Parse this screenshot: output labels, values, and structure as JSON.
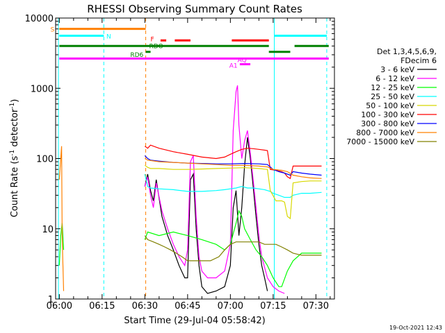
{
  "chart_data": {
    "type": "line",
    "title": "RHESSI Observing Summary Count Rates",
    "xlabel": "Start Time (29-Jul-04 05:58:42)",
    "ylabel": "Count Rate (s⁻¹ detector⁻¹)",
    "ylabel_parts": {
      "main": "Count Rate (s",
      "sup1": "-1",
      "mid": " detector",
      "sup2": "-1",
      "end": ")"
    },
    "xlim_minutes": [
      -1.3,
      96.5
    ],
    "x_ticks": [
      {
        "label": "06:00",
        "min": 0
      },
      {
        "label": "06:15",
        "min": 15
      },
      {
        "label": "06:30",
        "min": 30
      },
      {
        "label": "06:45",
        "min": 45
      },
      {
        "label": "07:00",
        "min": 60
      },
      {
        "label": "07:15",
        "min": 75
      },
      {
        "label": "07:30",
        "min": 90
      }
    ],
    "y_scale": "log",
    "ylim": [
      1,
      10000
    ],
    "y_ticks": [
      {
        "label": "1",
        "value": 1
      },
      {
        "label": "10",
        "value": 10
      },
      {
        "label": "100",
        "value": 100
      },
      {
        "label": "1000",
        "value": 1000
      },
      {
        "label": "10000",
        "value": 10000
      }
    ],
    "legend": {
      "position": "right",
      "header": [
        "Det 1,3,4,5,6,9,",
        "FDecim 6"
      ],
      "entries": [
        {
          "label": "3 - 6 keV",
          "color": "#000000"
        },
        {
          "label": "6 - 12 keV",
          "color": "#ff00ff"
        },
        {
          "label": "12 - 25 keV",
          "color": "#00ff00"
        },
        {
          "label": "25 - 50 keV",
          "color": "#00ffff"
        },
        {
          "label": "50 - 100 keV",
          "color": "#d8d800"
        },
        {
          "label": "100 - 300 keV",
          "color": "#ff0000"
        },
        {
          "label": "300 - 800 keV",
          "color": "#0000ff"
        },
        {
          "label": "800 - 7000 keV",
          "color": "#ff8000"
        },
        {
          "label": "7000 - 15000 keV",
          "color": "#808000"
        }
      ]
    },
    "series": [
      {
        "name": "3 - 6 keV",
        "color": "#000000",
        "x": [
          30,
          31,
          32,
          33,
          34,
          36,
          38,
          40,
          42,
          44,
          45,
          46,
          47,
          48,
          49,
          50,
          52,
          55,
          58,
          60,
          61,
          62,
          63,
          64,
          65,
          66,
          67,
          68,
          69,
          70,
          71,
          72,
          73
        ],
        "y": [
          40,
          60,
          35,
          25,
          50,
          15,
          8,
          5,
          3,
          2,
          2,
          50,
          60,
          10,
          3,
          1.5,
          1.2,
          1.3,
          1.5,
          3,
          20,
          35,
          8,
          20,
          80,
          200,
          100,
          40,
          15,
          6,
          3,
          2,
          1.3
        ]
      },
      {
        "name": "6 - 12 keV",
        "color": "#ff00ff",
        "x": [
          30,
          31,
          32,
          33,
          34,
          36,
          38,
          40,
          42,
          44,
          45,
          46,
          47,
          48,
          49,
          50,
          52,
          55,
          58,
          60,
          61,
          62,
          62.5,
          63,
          64,
          65,
          66,
          67,
          68,
          69,
          70,
          71,
          73,
          75,
          77,
          79
        ],
        "y": [
          40,
          55,
          30,
          20,
          45,
          18,
          10,
          6,
          4,
          3,
          5,
          90,
          110,
          15,
          4,
          2.5,
          2,
          2,
          2.5,
          6,
          250,
          900,
          1100,
          300,
          100,
          180,
          250,
          120,
          50,
          20,
          8,
          4,
          2,
          1.5,
          1.3,
          1.2
        ]
      },
      {
        "name": "12 - 25 keV",
        "color": "#00ff00",
        "x": [
          0,
          0.5,
          1,
          1.5,
          30,
          31,
          35,
          40,
          45,
          50,
          55,
          58,
          60,
          62,
          63,
          64,
          65,
          67,
          69,
          71,
          73,
          75,
          77,
          78,
          80,
          82,
          85,
          88,
          92
        ],
        "y": [
          3,
          8,
          12,
          5,
          7,
          9,
          8,
          9,
          8,
          7,
          6,
          5,
          6,
          12,
          18,
          15,
          10,
          7,
          5,
          4,
          3,
          2,
          1.5,
          1.5,
          2.5,
          3.5,
          4.5,
          4.5,
          4.5
        ]
      },
      {
        "name": "25 - 50 keV",
        "color": "#00ffff",
        "x": [
          30,
          31,
          32,
          35,
          40,
          45,
          50,
          55,
          58,
          60,
          62,
          64,
          66,
          68,
          70,
          72,
          73,
          74,
          75,
          77,
          79,
          81,
          82,
          85,
          88,
          92
        ],
        "y": [
          60,
          40,
          38,
          37,
          36,
          34,
          34,
          35,
          36,
          37,
          38,
          40,
          38,
          38,
          37,
          36,
          35,
          34,
          32,
          30,
          28,
          28,
          30,
          32,
          32,
          33
        ]
      },
      {
        "name": "50 - 100 keV",
        "color": "#d8d800",
        "x": [
          30,
          31,
          32,
          35,
          40,
          45,
          50,
          55,
          60,
          65,
          70,
          73,
          74,
          76,
          78,
          79,
          80,
          81,
          82,
          85,
          88,
          92
        ],
        "y": [
          80,
          75,
          72,
          72,
          70,
          70,
          71,
          72,
          73,
          74,
          72,
          70,
          35,
          25,
          25,
          24,
          15,
          14,
          45,
          47,
          48,
          48
        ]
      },
      {
        "name": "100 - 300 keV",
        "color": "#ff0000",
        "x": [
          30,
          31,
          32,
          35,
          40,
          45,
          50,
          55,
          58,
          60,
          62,
          64,
          66,
          68,
          70,
          73,
          74,
          76,
          78,
          79,
          80,
          81,
          82,
          85,
          88,
          92
        ],
        "y": [
          150,
          140,
          155,
          140,
          125,
          115,
          105,
          100,
          105,
          115,
          125,
          135,
          140,
          138,
          135,
          130,
          70,
          68,
          65,
          62,
          55,
          52,
          78,
          78,
          78,
          78
        ]
      },
      {
        "name": "300 - 800 keV",
        "color": "#0000ff",
        "x": [
          30,
          31,
          32,
          35,
          40,
          45,
          50,
          55,
          60,
          65,
          70,
          73,
          75,
          77,
          79,
          81,
          82,
          85,
          88,
          92
        ],
        "y": [
          110,
          100,
          95,
          92,
          88,
          86,
          85,
          84,
          84,
          85,
          84,
          82,
          70,
          65,
          62,
          58,
          65,
          62,
          60,
          58
        ]
      },
      {
        "name": "800 - 7000 keV",
        "color": "#ff8000",
        "x": [
          0,
          0.8,
          1,
          1.5,
          30,
          31,
          35,
          40,
          45,
          50,
          55,
          60,
          65,
          70,
          73,
          75,
          78,
          80,
          82,
          85,
          88,
          92
        ],
        "y": [
          50,
          150,
          8,
          1.3,
          100,
          95,
          90,
          88,
          86,
          84,
          82,
          80,
          80,
          78,
          76,
          70,
          68,
          65,
          58,
          55,
          53,
          52
        ]
      },
      {
        "name": "7000 - 15000 keV",
        "color": "#808000",
        "x": [
          30,
          31,
          33,
          35,
          37,
          39,
          41,
          43,
          45,
          47,
          50,
          53,
          56,
          58,
          60,
          62,
          64,
          66,
          68,
          70,
          72,
          74,
          76,
          78,
          80,
          82,
          85,
          88,
          92
        ],
        "y": [
          8,
          7,
          6.5,
          6,
          5.5,
          5,
          4.5,
          4,
          3.5,
          3.5,
          3.5,
          3.5,
          4,
          5,
          6,
          6.5,
          6.5,
          6.5,
          6.5,
          6.5,
          6,
          6,
          6,
          5.5,
          5,
          4.5,
          4.2,
          4.2,
          4.2
        ]
      }
    ],
    "vlines": [
      {
        "x": -0.3,
        "color": "#00ffff",
        "style": "solid"
      },
      {
        "x": 15.6,
        "color": "#00ffff",
        "style": "dashed"
      },
      {
        "x": 30.3,
        "color": "#ff8000",
        "style": "dashed"
      },
      {
        "x": 75.4,
        "color": "#00ffff",
        "style": "solid"
      },
      {
        "x": 93.8,
        "color": "#00ffff",
        "style": "dashed"
      }
    ],
    "flag_bars": [
      {
        "label": "S",
        "color": "#ff8000",
        "level": 7000,
        "segments": [
          [
            0,
            30.3
          ]
        ]
      },
      {
        "label": "N",
        "color": "#00ffff",
        "level": 5600,
        "segments": [
          [
            0,
            15.6
          ],
          [
            75.4,
            93.8
          ]
        ]
      },
      {
        "label": "F",
        "color": "#ff0000",
        "level": 4800,
        "segments": [
          [
            35.5,
            37.5
          ],
          [
            40.5,
            46
          ],
          [
            60.5,
            73.5
          ]
        ]
      },
      {
        "label": "RDO",
        "color": "#008000",
        "level": 4000,
        "segments": [
          [
            0,
            73.5
          ],
          [
            82.5,
            94.5
          ]
        ]
      },
      {
        "label": "RD6",
        "color": "#008000",
        "level": 3300,
        "segments": [
          [
            30.3,
            32
          ],
          [
            73.5,
            81
          ]
        ]
      },
      {
        "label": "AQ",
        "color": "#ff00ff",
        "level": 2650,
        "segments": [
          [
            0,
            94.5
          ]
        ]
      },
      {
        "label": "A1",
        "color": "#ff00ff",
        "level": 2200,
        "segments": [
          [
            63.3,
            67
          ]
        ]
      }
    ],
    "footer_date": "19-Oct-2021 12:43"
  }
}
